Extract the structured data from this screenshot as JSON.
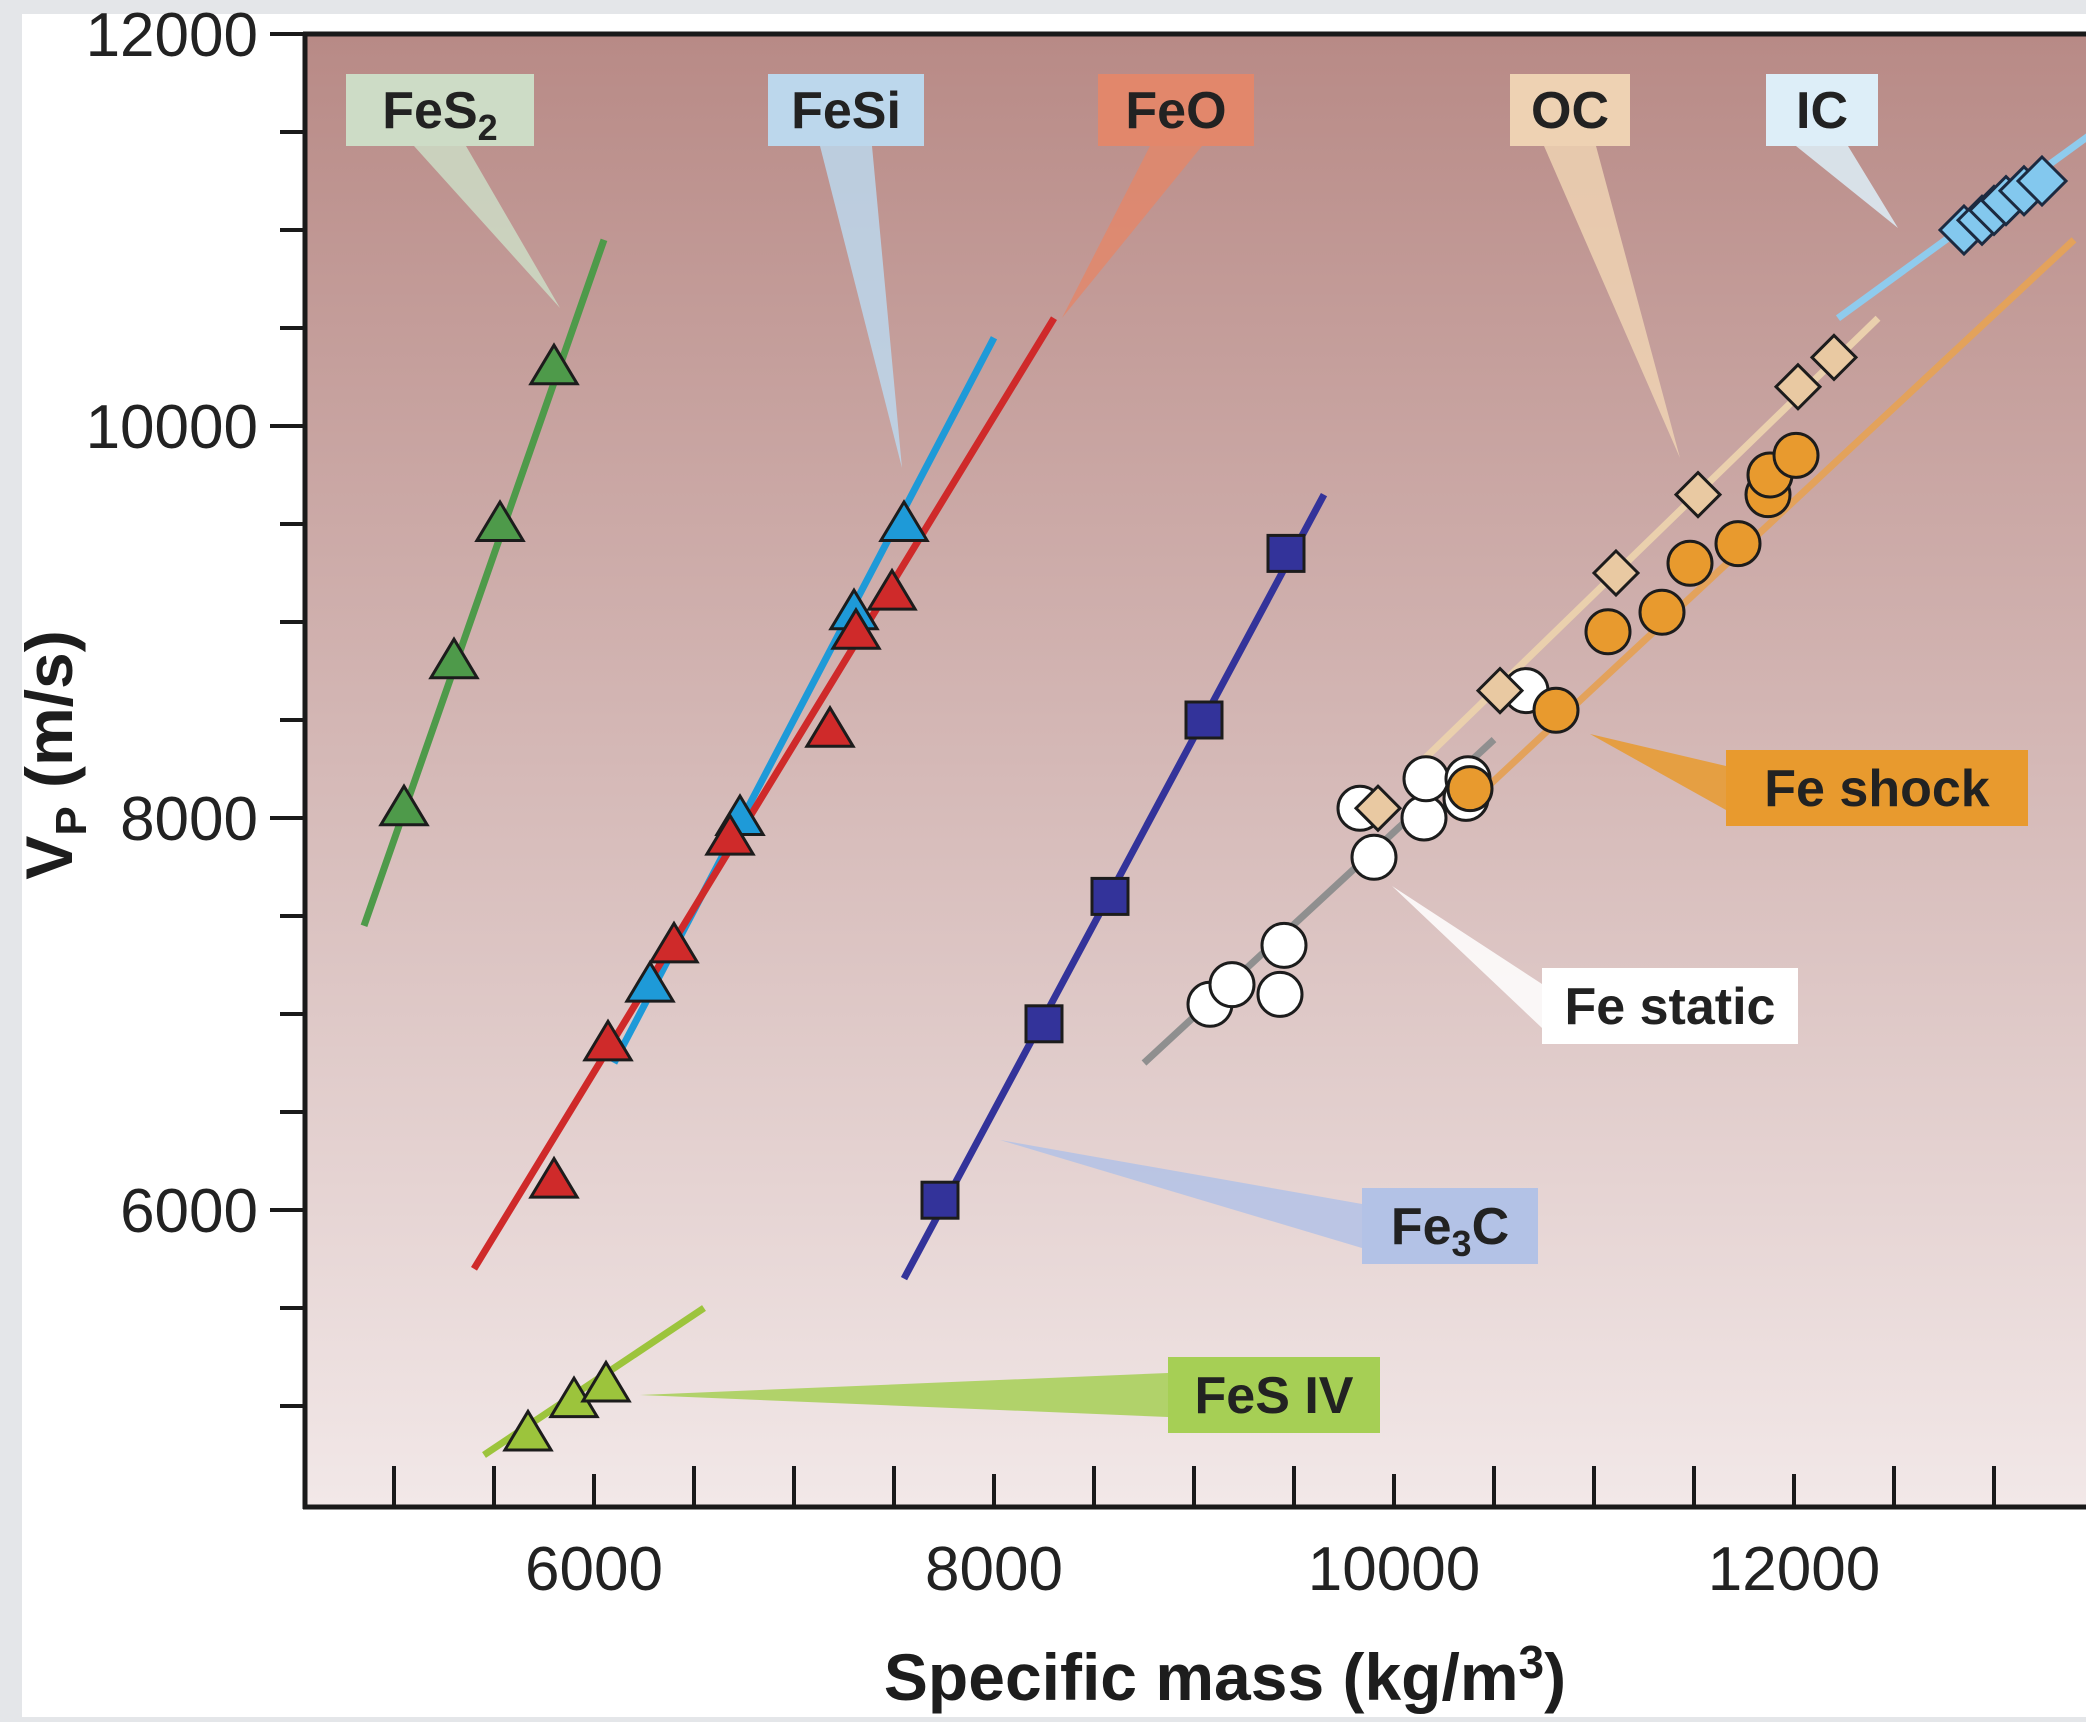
{
  "chart_data": {
    "type": "scatter",
    "title": "",
    "xlabel": "Specific mass (kg/m3)",
    "ylabel": "VP (m/s)",
    "xlim": [
      4000,
      13500
    ],
    "ylim": [
      4700,
      12000
    ],
    "x_ticks": [
      6000,
      8000,
      10000,
      12000
    ],
    "y_ticks": [
      6000,
      8000,
      10000,
      12000
    ],
    "grid": false,
    "series": [
      {
        "name": "FeS2",
        "color": "#4e9a4a",
        "marker": "triangle",
        "fit": [
          [
            4850,
            7450
          ],
          [
            6050,
            10950
          ]
        ],
        "x": [
          5050,
          5300,
          5530,
          5800
        ],
        "y": [
          8050,
          8800,
          9500,
          10300
        ]
      },
      {
        "name": "FeSi",
        "color": "#1e9ad8",
        "marker": "triangle",
        "fit": [
          [
            6100,
            6750
          ],
          [
            8000,
            10450
          ]
        ],
        "x": [
          6280,
          6730,
          7300,
          7550
        ],
        "y": [
          7150,
          8000,
          9050,
          9500
        ]
      },
      {
        "name": "FeO",
        "color": "#cf2a2a",
        "marker": "triangle",
        "fit": [
          [
            5400,
            5700
          ],
          [
            8300,
            10550
          ]
        ],
        "x": [
          5800,
          6070,
          6400,
          6680,
          7180,
          7310,
          7490
        ],
        "y": [
          6150,
          6850,
          7350,
          7900,
          8450,
          8950,
          9150
        ]
      },
      {
        "name": "Fe3C",
        "color": "#33339a",
        "marker": "square",
        "fit": [
          [
            7550,
            5650
          ],
          [
            9650,
            9650
          ]
        ],
        "x": [
          7730,
          8250,
          8580,
          9050,
          9460
        ],
        "y": [
          6050,
          6950,
          7600,
          8500,
          9350
        ]
      },
      {
        "name": "FeS IV",
        "color": "#9cc43c",
        "marker": "triangle",
        "fit": [
          [
            5450,
            4750
          ],
          [
            6550,
            5500
          ]
        ],
        "x": [
          5670,
          5900,
          6060
        ],
        "y": [
          4860,
          5030,
          5110
        ]
      },
      {
        "name": "Fe static",
        "color": "#ffffff",
        "marker": "circle",
        "fit": [
          [
            8750,
            6750
          ],
          [
            10500,
            8400
          ]
        ],
        "x": [
          9080,
          9190,
          9430,
          9450,
          9830,
          9900,
          10150,
          10160,
          10360,
          10370,
          10660
        ],
        "y": [
          7050,
          7150,
          7100,
          7350,
          8050,
          7800,
          8000,
          8200,
          8100,
          8200,
          8650
        ]
      },
      {
        "name": "Fe shock",
        "color": "#e89a2e",
        "marker": "circle",
        "fit": [
          [
            10300,
            8000
          ],
          [
            13400,
            10950
          ]
        ],
        "x": [
          10380,
          10810,
          11070,
          11340,
          11480,
          11720,
          11870,
          11880,
          12010
        ],
        "y": [
          8150,
          8550,
          8950,
          9050,
          9300,
          9400,
          9650,
          9750,
          9850
        ]
      },
      {
        "name": "OC",
        "color": "#e9c9a2",
        "marker": "diamond",
        "fit": [
          [
            10100,
            8250
          ],
          [
            12420,
            10550
          ]
        ],
        "x": [
          9920,
          10530,
          11110,
          11520,
          12020,
          12200
        ],
        "y": [
          8050,
          8650,
          9250,
          9650,
          10200,
          10350
        ]
      },
      {
        "name": "IC",
        "color": "#83c8ee",
        "marker": "diamond",
        "fit": [
          [
            12220,
            10550
          ],
          [
            13500,
            11500
          ]
        ],
        "x": [
          12850,
          12940,
          13000,
          13060,
          13150,
          13240
        ],
        "y": [
          11000,
          11050,
          11100,
          11150,
          11200,
          11250
        ]
      }
    ],
    "annotations": [
      {
        "text": "FeS",
        "sub": "2",
        "box": "#cddcc6"
      },
      {
        "text": "FeSi",
        "sub": "",
        "box": "#bcd7ec"
      },
      {
        "text": "FeO",
        "sub": "",
        "box": "#e2876b"
      },
      {
        "text": "OC",
        "sub": "",
        "box": "#eed2b3"
      },
      {
        "text": "IC",
        "sub": "",
        "box": "#ddeef8"
      },
      {
        "text": "Fe shock",
        "sub": "",
        "box": "#e89a2e"
      },
      {
        "text": "Fe static",
        "sub": "",
        "box": "#ffffff"
      },
      {
        "text": "Fe",
        "sub": "3",
        "tail": "C",
        "box": "#b3c2e6"
      },
      {
        "text": "FeS IV",
        "sub": "",
        "box": "#a6cf55"
      }
    ],
    "background_gradient": [
      "#b88a86",
      "#f2e8e8"
    ]
  }
}
